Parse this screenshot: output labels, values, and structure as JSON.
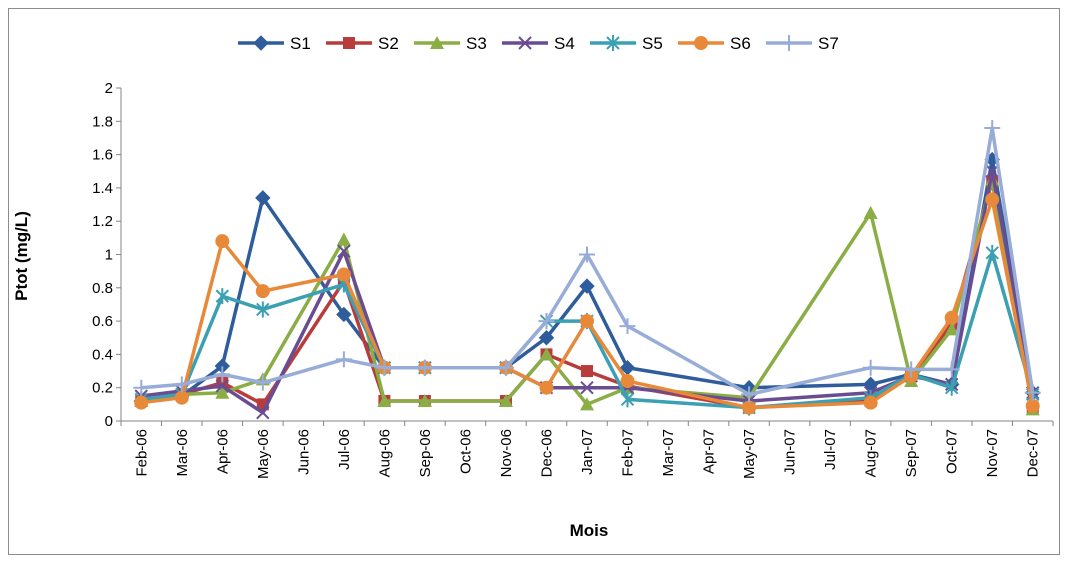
{
  "chart_data": {
    "type": "line",
    "xlabel": "Mois",
    "ylabel": "Ptot (mg/L)",
    "ylim": [
      0,
      2
    ],
    "yticks": [
      "0",
      "0.2",
      "0.4",
      "0.6",
      "0.8",
      "1",
      "1.2",
      "1.4",
      "1.6",
      "1.8",
      "2"
    ],
    "grid": false,
    "legend_position": "top",
    "categories": [
      "Feb-06",
      "Mar-06",
      "Apr-06",
      "May-06",
      "Jun-06",
      "Jul-06",
      "Aug-06",
      "Sep-06",
      "Oct-06",
      "Nov-06",
      "Dec-06",
      "Jan-07",
      "Feb-07",
      "Mar-07",
      "Apr-07",
      "May-07",
      "Jun-07",
      "Jul-07",
      "Aug-07",
      "Sep-07",
      "Oct-07",
      "Nov-07",
      "Dec-07"
    ],
    "series": [
      {
        "name": "S1",
        "color": "#2f5d9c",
        "marker": "diamond",
        "values": [
          0.12,
          0.15,
          0.33,
          1.34,
          null,
          0.64,
          0.32,
          0.32,
          null,
          0.32,
          0.5,
          0.81,
          0.32,
          null,
          null,
          0.2,
          null,
          null,
          0.22,
          0.28,
          0.22,
          1.57,
          0.17
        ]
      },
      {
        "name": "S2",
        "color": "#b83c3c",
        "marker": "square",
        "values": [
          0.12,
          0.16,
          0.23,
          0.1,
          null,
          0.84,
          0.12,
          0.12,
          null,
          0.12,
          0.4,
          0.3,
          0.21,
          null,
          null,
          0.08,
          null,
          null,
          0.12,
          0.27,
          0.58,
          1.44,
          0.08
        ]
      },
      {
        "name": "S3",
        "color": "#8aad46",
        "marker": "triangle",
        "values": [
          0.12,
          0.16,
          0.17,
          0.25,
          null,
          1.09,
          0.12,
          0.12,
          null,
          0.12,
          0.4,
          0.1,
          0.2,
          null,
          null,
          0.14,
          null,
          null,
          1.25,
          0.24,
          0.55,
          1.45,
          0.07
        ]
      },
      {
        "name": "S4",
        "color": "#6a4c93",
        "marker": "x",
        "values": [
          0.15,
          0.18,
          0.21,
          0.05,
          null,
          1.02,
          0.32,
          0.32,
          null,
          0.32,
          0.2,
          0.2,
          0.2,
          null,
          null,
          0.12,
          null,
          null,
          0.17,
          0.27,
          0.22,
          1.5,
          0.17
        ]
      },
      {
        "name": "S5",
        "color": "#3aa0b2",
        "marker": "asterisk",
        "values": [
          0.13,
          0.16,
          0.75,
          0.67,
          null,
          0.82,
          0.32,
          0.32,
          null,
          0.32,
          0.6,
          0.6,
          0.13,
          null,
          null,
          0.08,
          null,
          null,
          0.14,
          0.28,
          0.2,
          1.01,
          0.16
        ]
      },
      {
        "name": "S6",
        "color": "#e8893a",
        "marker": "circle",
        "values": [
          0.11,
          0.14,
          1.08,
          0.78,
          null,
          0.88,
          0.32,
          0.32,
          null,
          0.32,
          0.2,
          0.6,
          0.24,
          null,
          null,
          0.08,
          null,
          null,
          0.11,
          0.27,
          0.62,
          1.33,
          0.09
        ]
      },
      {
        "name": "S7",
        "color": "#98acd8",
        "marker": "plus",
        "values": [
          0.2,
          0.22,
          0.28,
          0.23,
          null,
          0.37,
          0.32,
          0.32,
          null,
          0.32,
          0.6,
          1.0,
          0.57,
          null,
          null,
          0.16,
          null,
          null,
          0.32,
          0.31,
          0.31,
          1.76,
          0.17
        ]
      }
    ]
  }
}
